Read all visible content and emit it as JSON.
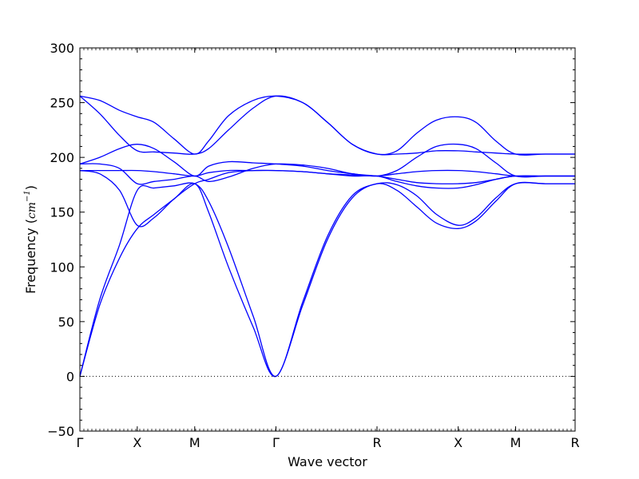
{
  "chart_data": {
    "type": "line",
    "title": "",
    "xlabel": "Wave vector",
    "ylabel_text": "Frequency (",
    "ylabel_math": "cm",
    "ylabel_exp": "−1",
    "ylabel_close": ")",
    "ylim": [
      -50,
      300
    ],
    "yticks": [
      -50,
      0,
      50,
      100,
      150,
      200,
      250,
      300
    ],
    "ytick_labels": [
      "−50",
      "0",
      "50",
      "100",
      "150",
      "200",
      "250",
      "300"
    ],
    "xticks": [
      0,
      0.1159,
      0.2319,
      0.3959,
      0.6,
      0.7639,
      0.8799,
      1.0
    ],
    "xtick_labels": [
      "Γ",
      "X",
      "M",
      "Γ",
      "R",
      "X",
      "M",
      "R"
    ],
    "xlim": [
      0,
      1
    ],
    "zero_line": true,
    "grid": false,
    "color": "#0000ff",
    "series": [
      {
        "x": [
          0,
          0.04,
          0.08,
          0.1159,
          0.15,
          0.19,
          0.2319,
          0.26,
          0.3,
          0.35,
          0.3959,
          0.45,
          0.5,
          0.55,
          0.6,
          0.64,
          0.68,
          0.72,
          0.7639,
          0.8,
          0.84,
          0.8799,
          0.94,
          1.0
        ],
        "y": [
          0,
          65,
          108,
          135,
          148,
          162,
          176,
          150,
          100,
          45,
          0,
          65,
          125,
          163,
          176,
          170,
          155,
          140,
          135,
          142,
          160,
          176,
          176,
          176
        ]
      },
      {
        "x": [
          0,
          0.04,
          0.08,
          0.1159,
          0.15,
          0.19,
          0.2319,
          0.26,
          0.3,
          0.35,
          0.3959,
          0.45,
          0.5,
          0.55,
          0.6,
          0.64,
          0.68,
          0.72,
          0.7639,
          0.8,
          0.84,
          0.8799,
          0.94,
          1.0
        ],
        "y": [
          0,
          70,
          120,
          170,
          172,
          174,
          176,
          160,
          118,
          55,
          0,
          68,
          128,
          165,
          176,
          175,
          165,
          148,
          138,
          145,
          163,
          176,
          176,
          176
        ]
      },
      {
        "x": [
          0,
          0.04,
          0.08,
          0.1159,
          0.15,
          0.19,
          0.2319,
          0.26,
          0.3,
          0.35,
          0.3959,
          0.45,
          0.5,
          0.55,
          0.6,
          0.64,
          0.68,
          0.72,
          0.7639,
          0.8,
          0.84,
          0.8799,
          0.94,
          1.0
        ],
        "y": [
          188,
          185,
          170,
          138,
          145,
          162,
          176,
          180,
          186,
          188,
          188,
          187,
          185,
          183,
          183,
          178,
          174,
          172,
          172,
          175,
          180,
          183,
          183,
          183
        ]
      },
      {
        "x": [
          0,
          0.04,
          0.08,
          0.1159,
          0.15,
          0.19,
          0.2319,
          0.26,
          0.3,
          0.35,
          0.3959,
          0.45,
          0.5,
          0.55,
          0.6,
          0.64,
          0.68,
          0.72,
          0.7639,
          0.8,
          0.84,
          0.8799,
          0.94,
          1.0
        ],
        "y": [
          188,
          188,
          188,
          188,
          187,
          185,
          183,
          186,
          188,
          188,
          188,
          187,
          185,
          184,
          183,
          185,
          187,
          188,
          188,
          187,
          185,
          183,
          183,
          183
        ]
      },
      {
        "x": [
          0,
          0.04,
          0.08,
          0.1159,
          0.15,
          0.19,
          0.2319,
          0.26,
          0.3,
          0.35,
          0.3959,
          0.45,
          0.5,
          0.55,
          0.6,
          0.64,
          0.68,
          0.72,
          0.7639,
          0.8,
          0.84,
          0.8799,
          0.94,
          1.0
        ],
        "y": [
          194,
          194,
          190,
          176,
          178,
          180,
          183,
          178,
          182,
          190,
          194,
          193,
          190,
          185,
          183,
          180,
          177,
          176,
          176,
          177,
          180,
          183,
          183,
          183
        ]
      },
      {
        "x": [
          0,
          0.04,
          0.08,
          0.1159,
          0.15,
          0.19,
          0.2319,
          0.26,
          0.3,
          0.35,
          0.3959,
          0.45,
          0.5,
          0.55,
          0.6,
          0.64,
          0.68,
          0.72,
          0.7639,
          0.8,
          0.84,
          0.8799,
          0.94,
          1.0
        ],
        "y": [
          194,
          200,
          208,
          212,
          208,
          196,
          183,
          192,
          196,
          195,
          194,
          192,
          188,
          185,
          183,
          188,
          200,
          210,
          212,
          208,
          195,
          183,
          183,
          183
        ]
      },
      {
        "x": [
          0,
          0.04,
          0.08,
          0.1159,
          0.15,
          0.19,
          0.2319,
          0.26,
          0.3,
          0.35,
          0.3959,
          0.45,
          0.5,
          0.55,
          0.6,
          0.64,
          0.68,
          0.72,
          0.7639,
          0.8,
          0.84,
          0.8799,
          0.94,
          1.0
        ],
        "y": [
          256,
          240,
          220,
          206,
          205,
          204,
          203,
          208,
          225,
          245,
          256,
          250,
          232,
          212,
          203,
          203,
          204,
          206,
          206,
          205,
          204,
          203,
          203,
          203
        ]
      },
      {
        "x": [
          0,
          0.04,
          0.08,
          0.1159,
          0.15,
          0.19,
          0.2319,
          0.26,
          0.3,
          0.35,
          0.3959,
          0.45,
          0.5,
          0.55,
          0.6,
          0.64,
          0.68,
          0.72,
          0.7639,
          0.8,
          0.84,
          0.8799,
          0.94,
          1.0
        ],
        "y": [
          256,
          252,
          243,
          237,
          232,
          217,
          203,
          215,
          238,
          252,
          256,
          250,
          232,
          212,
          203,
          206,
          222,
          234,
          237,
          232,
          215,
          203,
          203,
          203
        ]
      }
    ]
  }
}
